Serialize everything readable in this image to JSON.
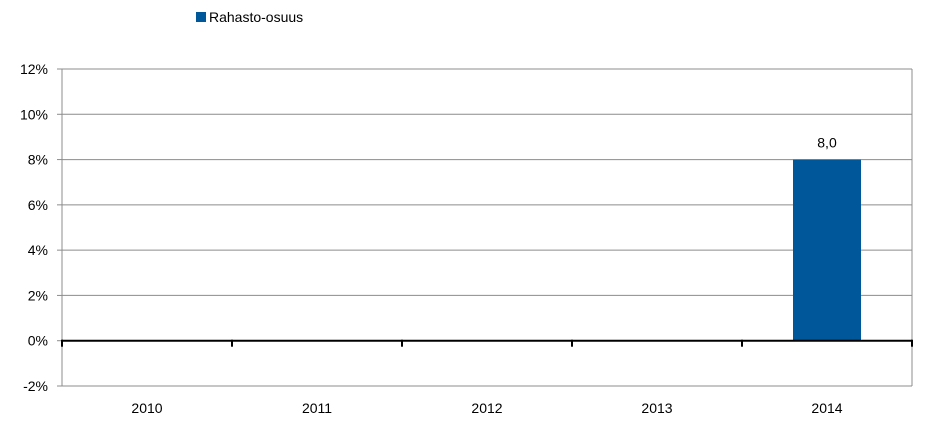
{
  "chart_data": {
    "type": "bar",
    "categories": [
      "2010",
      "2011",
      "2012",
      "2013",
      "2014"
    ],
    "series": [
      {
        "name": "Rahasto-osuus",
        "values": [
          null,
          null,
          null,
          null,
          8.0
        ],
        "data_labels": [
          "",
          "",
          "",
          "",
          "8,0"
        ],
        "color": "#00579a"
      }
    ],
    "ylim": [
      -2,
      12
    ],
    "y_ticks": [
      -2,
      0,
      2,
      4,
      6,
      8,
      10,
      12
    ],
    "y_tick_labels": [
      "-2%",
      "0%",
      "2%",
      "4%",
      "6%",
      "8%",
      "10%",
      "12%"
    ],
    "xlabel": "",
    "ylabel": "",
    "title": "",
    "grid": true,
    "legend": "top-left"
  }
}
